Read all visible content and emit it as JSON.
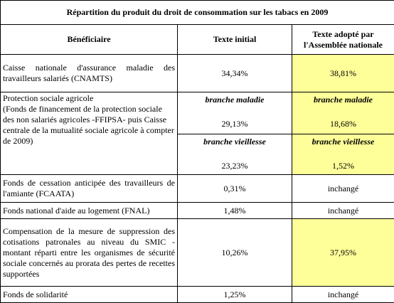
{
  "header": {
    "title": "Répartition du produit du droit de consommation sur les tabacs en 2009"
  },
  "table": {
    "columns": [
      "Bénéficiaire",
      "Texte initial",
      "Texte adopté par l'Assemblée nationale"
    ],
    "rows": [
      {
        "beneficiaire": "Caisse nationale d'assurance maladie des travailleurs salariés (CNAMTS)",
        "initial": "34,34%",
        "adopte": "38,81%"
      },
      {
        "beneficiaire": "Protection sociale agricole",
        "detail": "(Fonds de financement de la protection sociale des non salariés agricoles -FFIPSA- puis Caisse centrale de la mutualité sociale agricole à compter de 2009)",
        "branches": [
          {
            "label_initial": "branche maladie",
            "initial": "29,13%",
            "label_adopte": "branche maladie",
            "adopte": "18,68%"
          },
          {
            "label_initial": "branche vieillesse",
            "initial": "23,23%",
            "label_adopte": "branche vieillesse",
            "adopte": "1,52%"
          }
        ]
      },
      {
        "beneficiaire": "Fonds de cessation anticipée des travailleurs de l'amiante (FCAATA)",
        "initial": "0,31%",
        "adopte": "inchangé"
      },
      {
        "beneficiaire": "Fonds national d'aide au logement (FNAL)",
        "initial": "1,48%",
        "adopte": "inchangé"
      },
      {
        "beneficiaire": "Compensation de la mesure de suppression des cotisations patronales au niveau du SMIC - montant réparti entre les organismes de sécurité sociale concernés au prorata des pertes de recettes supportées",
        "initial": "10,26%",
        "adopte": "37,95%"
      },
      {
        "beneficiaire": "Fonds de solidarité",
        "initial": "1,25%",
        "adopte": "inchangé"
      }
    ]
  }
}
